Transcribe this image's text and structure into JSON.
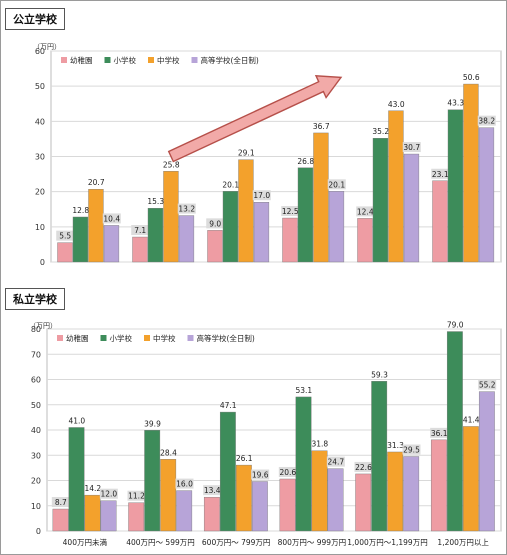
{
  "chart_data": [
    {
      "type": "bar",
      "title": "公立学校",
      "unit": "（万円）",
      "ylim": [
        0,
        60
      ],
      "yticks": [
        0,
        10,
        20,
        30,
        40,
        50,
        60
      ],
      "grid": true,
      "legend_placement": "top-left",
      "categories": [
        "400万円未満",
        "400万円～ 599万円",
        "600万円～ 799万円",
        "800万円～ 999万円",
        "1,000万円～1,199万円",
        "1,200万円以上"
      ],
      "series": [
        {
          "name": "幼稚園",
          "color": "#ee9ca3",
          "values": [
            5.5,
            7.1,
            9.0,
            12.5,
            12.4,
            23.1
          ]
        },
        {
          "name": "小学校",
          "color": "#3d8c5a",
          "values": [
            12.8,
            15.3,
            20.1,
            26.8,
            35.2,
            43.3
          ]
        },
        {
          "name": "中学校",
          "color": "#f3a12c",
          "values": [
            20.7,
            25.8,
            29.1,
            36.7,
            43.0,
            50.6
          ]
        },
        {
          "name": "高等学校(全日制)",
          "color": "#b7a4d8",
          "values": [
            10.4,
            13.2,
            17.0,
            20.1,
            30.7,
            38.2
          ]
        }
      ],
      "trend_arrow": true
    },
    {
      "type": "bar",
      "title": "私立学校",
      "unit": "（万円）",
      "ylim": [
        0,
        80
      ],
      "yticks": [
        0,
        10,
        20,
        30,
        40,
        50,
        60,
        70,
        80
      ],
      "grid": true,
      "legend_placement": "top-left",
      "categories": [
        "400万円未満",
        "400万円～ 599万円",
        "600万円～ 799万円",
        "800万円～ 999万円",
        "1,000万円～1,199万円",
        "1,200万円以上"
      ],
      "series": [
        {
          "name": "幼稚園",
          "color": "#ee9ca3",
          "values": [
            8.7,
            11.2,
            13.4,
            20.6,
            22.6,
            36.1
          ]
        },
        {
          "name": "小学校",
          "color": "#3d8c5a",
          "values": [
            41.0,
            39.9,
            47.1,
            53.1,
            59.3,
            79.0
          ]
        },
        {
          "name": "中学校",
          "color": "#f3a12c",
          "values": [
            14.2,
            28.4,
            26.1,
            31.8,
            31.3,
            41.4
          ]
        },
        {
          "name": "高等学校(全日制)",
          "color": "#b7a4d8",
          "values": [
            12.0,
            16.0,
            19.6,
            24.7,
            29.5,
            55.2
          ]
        }
      ],
      "trend_arrow": false
    }
  ]
}
